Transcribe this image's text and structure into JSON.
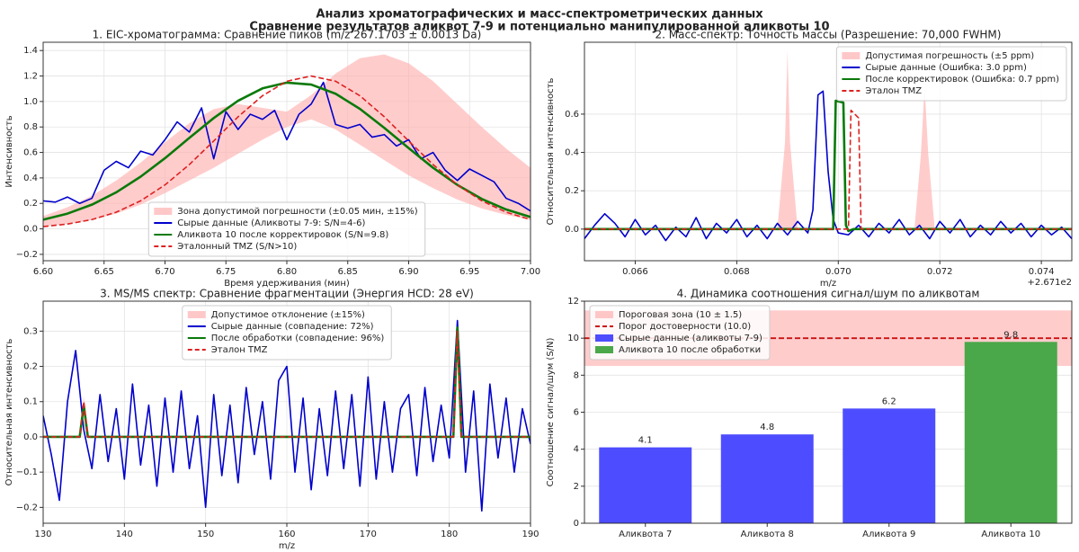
{
  "figure": {
    "title": "Анализ хроматографических и масс-спектрометрических данных",
    "subtitle": "Сравнение результатов аликвот 7-9 и потенциально манипулированной аликвоты 10"
  },
  "chart_data": [
    {
      "type": "line",
      "title": "1. EIC-хроматограмма: Сравнение пиков (m/z 267.1703 ± 0.0013 Da)",
      "xlabel": "Время удерживания (мин)",
      "ylabel": "Интенсивность",
      "grid": true,
      "legend": "lower center",
      "xlim": [
        6.6,
        7.0
      ],
      "ylim": [
        -0.25,
        1.465
      ],
      "xticks": [
        {
          "value": 6.6,
          "label": "6.60"
        },
        6.65,
        {
          "value": 6.7,
          "label": "6.70"
        },
        6.75,
        {
          "value": 6.8,
          "label": "6.80"
        },
        6.85,
        {
          "value": 6.9,
          "label": "6.90"
        },
        6.95,
        {
          "value": 7.0,
          "label": "7.00"
        }
      ],
      "yticks": [
        {
          "value": -0.2,
          "label": "−0.2"
        },
        {
          "value": 0,
          "label": "0.0"
        },
        0.2,
        0.4,
        0.6,
        0.8,
        {
          "value": 1,
          "label": "1.0"
        },
        1.2,
        1.4
      ],
      "series": [
        {
          "name": "Зона допустимой погрешности (±0.05 мин, ±15%)",
          "style": "band",
          "color": "#ffb0b0",
          "x": [
            6.6,
            6.62,
            6.64,
            6.66,
            6.68,
            6.7,
            6.72,
            6.74,
            6.76,
            6.78,
            6.8,
            6.82,
            6.84,
            6.86,
            6.88,
            6.9,
            6.92,
            6.94,
            6.96,
            6.98,
            7.0
          ],
          "lower": [
            0.02,
            0.04,
            0.07,
            0.12,
            0.19,
            0.28,
            0.38,
            0.48,
            0.59,
            0.7,
            0.8,
            0.86,
            0.78,
            0.66,
            0.54,
            0.42,
            0.32,
            0.23,
            0.16,
            0.11,
            0.07
          ],
          "upper": [
            0.1,
            0.17,
            0.26,
            0.38,
            0.52,
            0.68,
            0.83,
            0.94,
            0.98,
            0.95,
            0.92,
            1.05,
            1.22,
            1.34,
            1.37,
            1.3,
            1.16,
            0.98,
            0.8,
            0.63,
            0.48
          ]
        },
        {
          "name": "Сырые данные (Аликвоты 7-9: S/N=4-6)",
          "style": "solid",
          "color": "#0000cc",
          "x": [
            6.6,
            6.61,
            6.62,
            6.63,
            6.64,
            6.65,
            6.66,
            6.67,
            6.68,
            6.69,
            6.7,
            6.71,
            6.72,
            6.73,
            6.74,
            6.75,
            6.76,
            6.77,
            6.78,
            6.79,
            6.8,
            6.81,
            6.82,
            6.83,
            6.84,
            6.85,
            6.86,
            6.87,
            6.88,
            6.89,
            6.9,
            6.91,
            6.92,
            6.93,
            6.94,
            6.95,
            6.96,
            6.97,
            6.98,
            6.99,
            7.0
          ],
          "values": [
            0.22,
            0.21,
            0.25,
            0.2,
            0.24,
            0.46,
            0.53,
            0.48,
            0.61,
            0.58,
            0.7,
            0.84,
            0.76,
            0.95,
            0.55,
            0.92,
            0.78,
            0.9,
            0.86,
            0.93,
            0.7,
            0.9,
            0.98,
            1.15,
            0.82,
            0.79,
            0.82,
            0.72,
            0.74,
            0.65,
            0.7,
            0.55,
            0.6,
            0.46,
            0.38,
            0.47,
            0.42,
            0.37,
            0.24,
            0.2,
            0.14
          ]
        },
        {
          "name": "Аликвота 10 после корректировок (S/N=9.8)",
          "style": "solid",
          "width": 2.6,
          "color": "#0a7a0a",
          "x": [
            6.6,
            6.62,
            6.64,
            6.66,
            6.68,
            6.7,
            6.72,
            6.74,
            6.76,
            6.78,
            6.8,
            6.82,
            6.84,
            6.86,
            6.88,
            6.9,
            6.92,
            6.94,
            6.96,
            6.98,
            7.0
          ],
          "values": [
            0.072,
            0.12,
            0.19,
            0.287,
            0.41,
            0.555,
            0.714,
            0.87,
            1.006,
            1.103,
            1.148,
            1.133,
            1.061,
            0.942,
            0.793,
            0.634,
            0.48,
            0.345,
            0.235,
            0.152,
            0.093
          ]
        },
        {
          "name": "Эталонный TMZ (S/N>10)",
          "style": "dashed",
          "color": "#dd2222",
          "x": [
            6.6,
            6.62,
            6.64,
            6.66,
            6.68,
            6.7,
            6.72,
            6.74,
            6.76,
            6.78,
            6.8,
            6.82,
            6.84,
            6.86,
            6.88,
            6.9,
            6.92,
            6.94,
            6.96,
            6.98,
            7.0
          ],
          "values": [
            0.018,
            0.038,
            0.073,
            0.131,
            0.22,
            0.345,
            0.505,
            0.69,
            0.88,
            1.045,
            1.159,
            1.2,
            1.159,
            1.045,
            0.88,
            0.69,
            0.505,
            0.345,
            0.22,
            0.131,
            0.073
          ]
        }
      ]
    },
    {
      "type": "line",
      "title": "2. Масс-спектр: Точность массы (Разрешение: 70,000 FWHM)",
      "xlabel": "m/z",
      "ylabel": "Относительная интенсивность",
      "x_offset_label": "+2.671e2",
      "grid": true,
      "legend": "upper right",
      "xlim": [
        267.165,
        267.1746
      ],
      "ylim": [
        -0.165,
        0.975
      ],
      "xticks": [
        {
          "value": 267.166,
          "label": "0.066"
        },
        {
          "value": 267.168,
          "label": "0.068"
        },
        {
          "value": 267.17,
          "label": "0.070"
        },
        {
          "value": 267.172,
          "label": "0.072"
        },
        {
          "value": 267.174,
          "label": "0.074"
        }
      ],
      "yticks": [
        {
          "value": 0,
          "label": "0.0"
        },
        0.2,
        0.4,
        0.6
      ],
      "series": [
        {
          "name": "Допустимая погрешность (±5 ppm)",
          "style": "area",
          "color": "#ffb0b0",
          "x": [
            267.165,
            267.1688,
            267.16895,
            267.169,
            267.16905,
            267.1692,
            267.1715,
            267.17163,
            267.1717,
            267.17177,
            267.1719,
            267.1746
          ],
          "values": [
            0,
            0,
            0.45,
            0.93,
            0.45,
            0,
            0,
            0.4,
            0.75,
            0.4,
            0,
            0
          ]
        },
        {
          "name": "Сырые данные (Ошибка: 3.0 ppm)",
          "style": "solid",
          "color": "#0000cc",
          "x": [
            267.165,
            267.1652,
            267.1654,
            267.1656,
            267.1658,
            267.166,
            267.1662,
            267.1664,
            267.1666,
            267.1668,
            267.167,
            267.1672,
            267.1674,
            267.1676,
            267.1678,
            267.168,
            267.1682,
            267.1684,
            267.1686,
            267.1688,
            267.169,
            267.1692,
            267.1694,
            267.1695,
            267.1696,
            267.1697,
            267.1698,
            267.1699,
            267.17,
            267.1702,
            267.1704,
            267.1706,
            267.1708,
            267.171,
            267.1712,
            267.1714,
            267.1716,
            267.1718,
            267.172,
            267.1722,
            267.1724,
            267.1726,
            267.1728,
            267.173,
            267.1732,
            267.1734,
            267.1736,
            267.1738,
            267.174,
            267.1742,
            267.1744,
            267.1746
          ],
          "values": [
            -0.05,
            0.02,
            0.08,
            0.03,
            -0.04,
            0.05,
            -0.03,
            0.02,
            -0.06,
            0.01,
            -0.04,
            0.06,
            -0.05,
            0.03,
            -0.02,
            0.05,
            -0.04,
            0.02,
            -0.05,
            0.03,
            -0.03,
            0.04,
            -0.02,
            0.1,
            0.7,
            0.72,
            0.3,
            0.05,
            -0.02,
            -0.03,
            0.02,
            -0.04,
            0.03,
            -0.02,
            0.05,
            -0.03,
            0.02,
            -0.05,
            0.04,
            -0.02,
            0.05,
            -0.04,
            0.02,
            -0.03,
            0.04,
            -0.02,
            0.03,
            -0.04,
            0.02,
            -0.03,
            0.01,
            -0.05
          ]
        },
        {
          "name": "После корректировок (Ошибка: 0.7 ppm)",
          "style": "solid",
          "width": 2.6,
          "color": "#0a7a0a",
          "x": [
            267.165,
            267.1699,
            267.16995,
            267.1701,
            267.17015,
            267.1702,
            267.1703,
            267.1746
          ],
          "values": [
            0,
            0,
            0.67,
            0.66,
            0.02,
            -0.01,
            0,
            0
          ]
        },
        {
          "name": "Эталон TMZ",
          "style": "dashed",
          "color": "#dd2222",
          "x": [
            267.165,
            267.1702,
            267.17025,
            267.1704,
            267.17045,
            267.1746
          ],
          "values": [
            0,
            0,
            0.62,
            0.58,
            0,
            0
          ]
        }
      ]
    },
    {
      "type": "line",
      "title": "3. MS/MS спектр: Сравнение фрагментации (Энергия HCD: 28 eV)",
      "xlabel": "m/z",
      "ylabel": "Относительная интенсивность",
      "grid": true,
      "legend": "upper center",
      "xlim": [
        130,
        190
      ],
      "ylim": [
        -0.245,
        0.385
      ],
      "xticks": [
        130,
        140,
        150,
        160,
        170,
        180,
        190
      ],
      "yticks": [
        {
          "value": -0.2,
          "label": "−0.2"
        },
        {
          "value": -0.1,
          "label": "−0.1"
        },
        {
          "value": 0,
          "label": "0.0"
        },
        0.1,
        0.2,
        0.3
      ],
      "series": [
        {
          "name": "Допустимое отклонение (±15%)",
          "style": "band",
          "color": "#ffb0b0",
          "x": [
            130,
            134.5,
            135,
            135.5,
            180.5,
            181,
            181.5,
            190
          ],
          "lower": [
            0,
            0,
            0.085,
            0,
            0,
            0.255,
            0,
            0
          ],
          "upper": [
            0,
            0,
            0.115,
            0,
            0,
            0.345,
            0,
            0
          ]
        },
        {
          "name": "Сырые данные (совпадение: 72%)",
          "style": "solid",
          "color": "#0000cc",
          "x": [
            130,
            131,
            132,
            133,
            134,
            135,
            136,
            137,
            138,
            139,
            140,
            141,
            142,
            143,
            144,
            145,
            146,
            147,
            148,
            149,
            150,
            151,
            152,
            153,
            154,
            155,
            156,
            157,
            158,
            159,
            160,
            161,
            162,
            163,
            164,
            165,
            166,
            167,
            168,
            169,
            170,
            171,
            172,
            173,
            174,
            175,
            176,
            177,
            178,
            179,
            180,
            181,
            182,
            183,
            184,
            185,
            186,
            187,
            188,
            189,
            190
          ],
          "values": [
            0.06,
            -0.05,
            -0.18,
            0.1,
            0.245,
            0.02,
            -0.09,
            0.12,
            -0.07,
            0.08,
            -0.12,
            0.15,
            -0.08,
            0.09,
            -0.14,
            0.11,
            -0.1,
            0.13,
            -0.09,
            0.06,
            -0.2,
            0.12,
            -0.11,
            0.09,
            -0.13,
            0.14,
            -0.05,
            0.1,
            -0.12,
            0.16,
            0.2,
            -0.1,
            0.11,
            -0.15,
            0.08,
            -0.11,
            0.13,
            -0.09,
            0.12,
            -0.14,
            0.17,
            -0.12,
            0.1,
            -0.1,
            0.08,
            0.12,
            -0.11,
            0.14,
            -0.07,
            0.09,
            -0.06,
            0.33,
            -0.1,
            0.13,
            -0.21,
            0.15,
            -0.06,
            0.11,
            -0.1,
            0.08,
            -0.02
          ]
        },
        {
          "name": "После обработки (совпадение: 96%)",
          "style": "solid",
          "width": 2.6,
          "color": "#0a7a0a",
          "x": [
            130,
            134.5,
            135,
            135.5,
            180.5,
            181,
            181.5,
            190
          ],
          "values": [
            0,
            0,
            0.09,
            0,
            0,
            0.31,
            0,
            0
          ]
        },
        {
          "name": "Эталон TMZ",
          "style": "dashed",
          "color": "#dd2222",
          "x": [
            130,
            134.5,
            135,
            135.5,
            180.5,
            181,
            181.5,
            190
          ],
          "values": [
            0,
            0,
            0.1,
            0,
            0,
            0.3,
            0,
            0
          ]
        }
      ]
    },
    {
      "type": "bar",
      "title": "4. Динамика соотношения сигнал/шум по аликвотам",
      "ylabel": "Соотношение сигнал/шум (S/N)",
      "grid": true,
      "legend": "upper left",
      "ylim": [
        0,
        12
      ],
      "yticks": [
        0,
        2,
        4,
        6,
        8,
        10,
        12
      ],
      "categories": [
        "Аликвота 7",
        "Аликвота 8",
        "Аликвота 9",
        "Аликвота 10"
      ],
      "band": {
        "name": "Пороговая зона (10 ± 1.5)",
        "color": "#ffb0b0",
        "lower": 8.5,
        "upper": 11.5
      },
      "threshold": {
        "name": "Порог достоверности (10.0)",
        "color": "#cc1111",
        "value": 10
      },
      "series": [
        {
          "name": "Сырые данные (аликвоты 7-9)",
          "color": "#4d4dff",
          "values": [
            4.1,
            4.8,
            6.2,
            null
          ]
        },
        {
          "name": "Аликвота 10 после обработки",
          "color": "#4aa84a",
          "values": [
            null,
            null,
            null,
            9.8
          ]
        }
      ]
    }
  ]
}
